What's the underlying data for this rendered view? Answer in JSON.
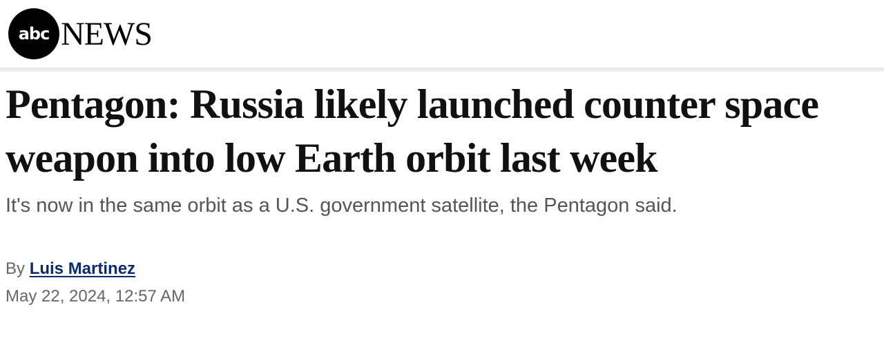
{
  "header": {
    "logo_abc": "abc",
    "logo_news": "NEWS"
  },
  "article": {
    "headline": "Pentagon: Russia likely launched counter space weapon into low Earth orbit last week",
    "subtitle": "It's now in the same orbit as a U.S. government satellite, the Pentagon said.",
    "byline_prefix": "By",
    "author": "Luis Martinez",
    "date": "May 22, 2024, 12:57 AM"
  },
  "colors": {
    "author_link": "#0b2c6b",
    "text": "#111111",
    "muted": "#666666"
  }
}
